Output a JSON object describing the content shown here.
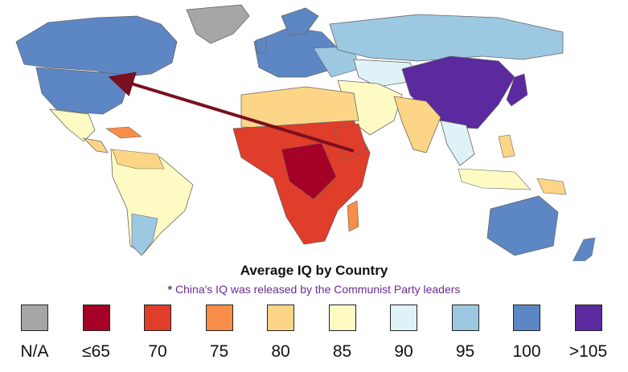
{
  "title": "Average IQ by Country",
  "note": {
    "star": "*",
    "text": "China's IQ was released by the Communist Party leaders"
  },
  "legend": [
    {
      "label": "N/A",
      "color": "#a6a6a6"
    },
    {
      "label": "≤65",
      "color": "#a50026"
    },
    {
      "label": "70",
      "color": "#e03d2a"
    },
    {
      "label": "75",
      "color": "#f88e48"
    },
    {
      "label": "80",
      "color": "#fdd586"
    },
    {
      "label": "85",
      "color": "#fdfbc3"
    },
    {
      "label": "90",
      "color": "#dff2f7"
    },
    {
      "label": "95",
      "color": "#9dc8e2"
    },
    {
      "label": "100",
      "color": "#5d87c4"
    },
    {
      "label": ">105",
      "color": "#5b2a9e"
    }
  ],
  "colors": {
    "ocean": "#ffffff",
    "border": "#666666",
    "arrow": "#7a0f1f"
  }
}
